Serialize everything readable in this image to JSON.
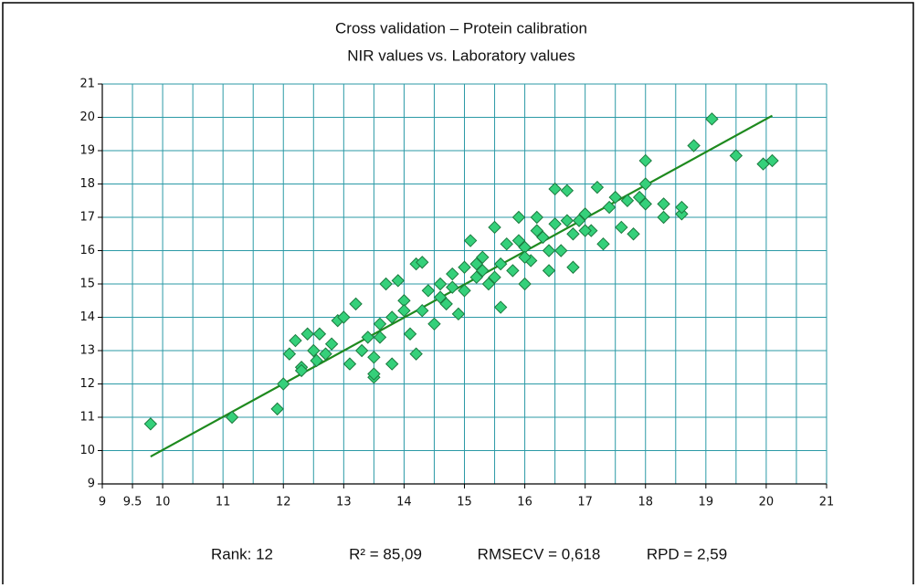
{
  "chart_data": {
    "type": "scatter",
    "title": "Cross validation – Protein calibration",
    "subtitle": "NIR values vs. Laboratory values",
    "xlim": [
      9,
      21
    ],
    "ylim": [
      9,
      21
    ],
    "xticks": [
      9,
      9.5,
      10,
      11,
      12,
      13,
      14,
      15,
      16,
      17,
      18,
      19,
      20,
      21
    ],
    "xgrid": [
      9,
      9.5,
      10,
      10.5,
      11,
      11.5,
      12,
      12.5,
      13,
      13.5,
      14,
      14.5,
      15,
      15.5,
      16,
      16.5,
      17,
      17.5,
      18,
      18.5,
      19,
      19.5,
      20,
      20.5,
      21
    ],
    "yticks": [
      9,
      10,
      11,
      12,
      13,
      14,
      15,
      16,
      17,
      18,
      19,
      20,
      21
    ],
    "grid": true,
    "grid_color": "#2b9aa6",
    "series": [
      {
        "color": "#35d07a",
        "stroke": "#1b7a3e",
        "x": [
          9.8,
          11.15,
          11.9,
          12.0,
          12.1,
          12.2,
          12.3,
          12.3,
          12.4,
          12.5,
          12.55,
          12.6,
          12.7,
          12.8,
          12.9,
          13.0,
          13.1,
          13.2,
          13.3,
          13.4,
          13.5,
          13.5,
          13.5,
          13.6,
          13.7,
          13.8,
          13.8,
          13.9,
          14.0,
          14.1,
          14.2,
          14.2,
          14.3,
          14.3,
          14.4,
          14.5,
          14.6,
          14.7,
          14.8,
          14.9,
          15.0,
          15.0,
          15.1,
          15.2,
          15.3,
          15.4,
          15.5,
          15.6,
          15.6,
          15.7,
          15.8,
          15.9,
          16.0,
          16.0,
          16.1,
          16.2,
          16.3,
          16.4,
          16.5,
          16.5,
          16.6,
          16.7,
          16.8,
          16.8,
          16.9,
          17.0,
          17.1,
          17.2,
          17.3,
          17.4,
          17.5,
          17.6,
          17.7,
          17.8,
          17.9,
          18.0,
          18.0,
          18.0,
          18.3,
          18.3,
          18.6,
          18.6,
          18.8,
          19.1,
          19.5,
          19.95,
          20.1,
          13.6,
          14.0,
          14.6,
          15.2,
          15.5,
          15.9,
          16.2,
          16.4,
          16.7,
          17.0,
          14.8,
          15.3,
          16.0
        ],
        "y": [
          10.8,
          11.0,
          11.25,
          12.0,
          12.9,
          13.3,
          12.5,
          12.4,
          13.5,
          13.0,
          12.7,
          13.5,
          12.9,
          13.2,
          13.9,
          14.0,
          12.6,
          14.4,
          13.0,
          13.4,
          12.2,
          12.3,
          12.8,
          13.8,
          15.0,
          12.6,
          14.0,
          15.1,
          14.5,
          13.5,
          15.6,
          12.9,
          15.65,
          14.2,
          14.8,
          13.8,
          15.0,
          14.4,
          15.3,
          14.1,
          15.5,
          14.8,
          16.3,
          15.2,
          15.8,
          15.0,
          16.7,
          14.3,
          15.6,
          16.2,
          15.4,
          17.0,
          16.1,
          15.0,
          15.7,
          17.0,
          16.4,
          15.4,
          17.85,
          16.8,
          16.0,
          17.8,
          15.5,
          16.5,
          16.9,
          17.1,
          16.6,
          17.9,
          16.2,
          17.3,
          17.6,
          16.7,
          17.5,
          16.5,
          17.6,
          18.7,
          17.4,
          18.0,
          17.4,
          17.0,
          17.1,
          17.3,
          19.15,
          19.95,
          18.85,
          18.6,
          18.7,
          13.4,
          14.2,
          14.6,
          15.6,
          15.2,
          16.3,
          16.6,
          16.0,
          16.9,
          16.6,
          14.9,
          15.4,
          15.8
        ]
      }
    ],
    "fit_line": {
      "color": "#1e8a1e",
      "x": [
        9.8,
        20.1
      ],
      "y": [
        9.82,
        20.05
      ]
    },
    "stats": [
      "Rank: 12",
      "R² = 85,09",
      "RMSECV = 0,618",
      "RPD = 2,59"
    ]
  }
}
